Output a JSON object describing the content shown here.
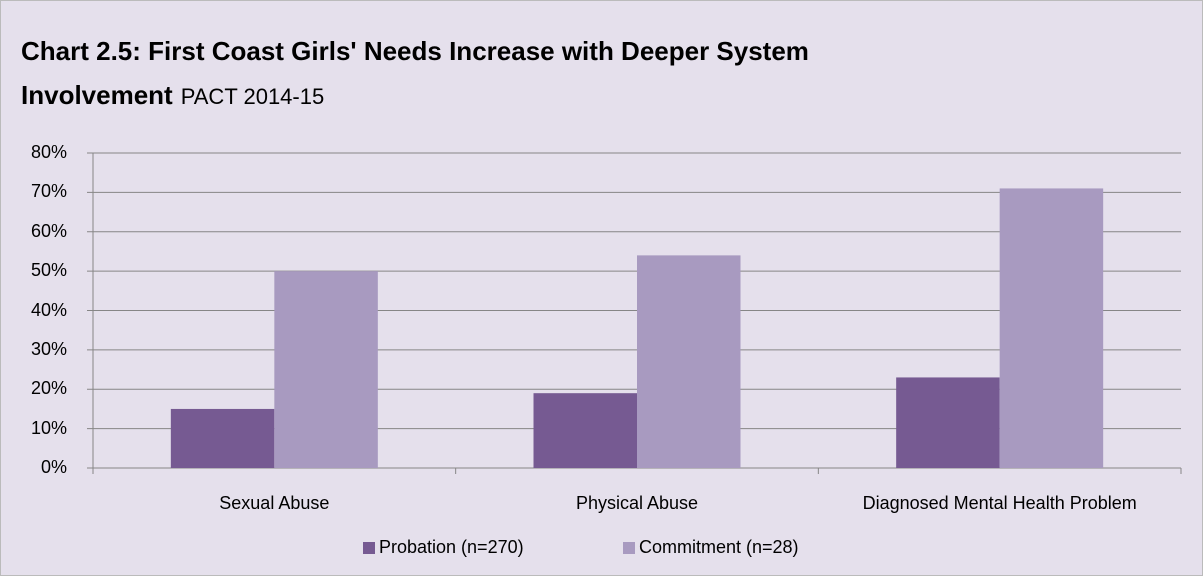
{
  "chart_data": {
    "type": "bar",
    "title": "Chart 2.5: First Coast Girls' Needs Increase with Deeper System Involvement",
    "subtitle": "PACT 2014-15",
    "categories": [
      "Sexual Abuse",
      "Physical Abuse",
      "Diagnosed Mental Health Problem"
    ],
    "series": [
      {
        "name": "Probation (n=270)",
        "color": "#765a92",
        "values": [
          15,
          19,
          23
        ]
      },
      {
        "name": "Commitment (n=28)",
        "color": "#a89ac0",
        "values": [
          50,
          54,
          71
        ]
      }
    ],
    "ylim": [
      0,
      80
    ],
    "yticks": [
      {
        "value": 0,
        "label": "0%"
      },
      {
        "value": 10,
        "label": "10%"
      },
      {
        "value": 20,
        "label": "20%"
      },
      {
        "value": 30,
        "label": "30%"
      },
      {
        "value": 40,
        "label": "40%"
      },
      {
        "value": 50,
        "label": "50%"
      },
      {
        "value": 60,
        "label": "60%"
      },
      {
        "value": 70,
        "label": "70%"
      },
      {
        "value": 80,
        "label": "80%"
      }
    ],
    "grid": true,
    "legend": "bottom"
  }
}
